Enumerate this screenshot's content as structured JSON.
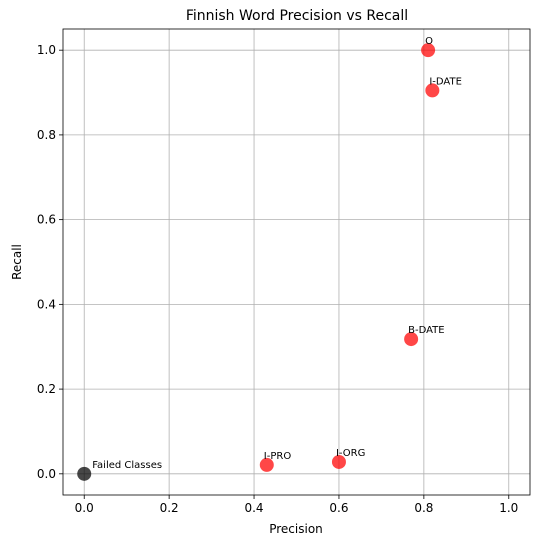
{
  "chart_data": {
    "type": "scatter",
    "title": "Finnish Word Precision vs Recall",
    "xlabel": "Precision",
    "ylabel": "Recall",
    "xlim": [
      -0.05,
      1.05
    ],
    "ylim": [
      -0.05,
      1.05
    ],
    "xticks": [
      0.0,
      0.2,
      0.4,
      0.6,
      0.8,
      1.0
    ],
    "yticks": [
      0.0,
      0.2,
      0.4,
      0.6,
      0.8,
      1.0
    ],
    "xtick_labels": [
      "0.0",
      "0.2",
      "0.4",
      "0.6",
      "0.8",
      "1.0"
    ],
    "ytick_labels": [
      "0.0",
      "0.2",
      "0.4",
      "0.6",
      "0.8",
      "1.0"
    ],
    "grid": true,
    "points": [
      {
        "label": "O",
        "x": 0.81,
        "y": 1.0,
        "color": "#ff0000"
      },
      {
        "label": "I-DATE",
        "x": 0.82,
        "y": 0.905,
        "color": "#ff0000"
      },
      {
        "label": "B-DATE",
        "x": 0.77,
        "y": 0.318,
        "color": "#ff0000"
      },
      {
        "label": "I-ORG",
        "x": 0.6,
        "y": 0.028,
        "color": "#ff0000"
      },
      {
        "label": "I-PRO",
        "x": 0.43,
        "y": 0.021,
        "color": "#ff0000"
      },
      {
        "label": "Failed Classes",
        "x": 0.0,
        "y": 0.0,
        "color": "#000000"
      }
    ]
  }
}
